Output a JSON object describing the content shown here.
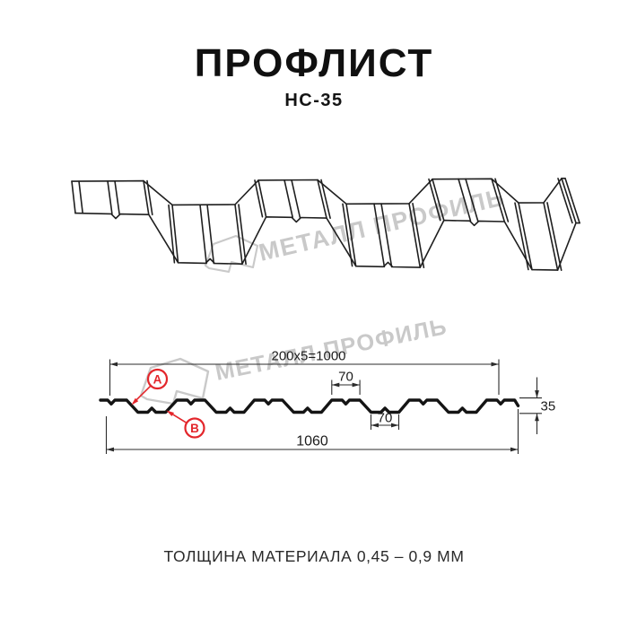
{
  "header": {
    "title": "ПРОФЛИСТ",
    "subtitle": "НС-35"
  },
  "footer": {
    "text": "ТОЛЩИНА МАТЕРИАЛА 0,45 – 0,9 ММ"
  },
  "watermark": {
    "text": "МЕТАЛЛ ПРОФИЛЬ",
    "color": "#c9c9c9"
  },
  "dimensions": {
    "useful_width": "200x5=1000",
    "total_width": "1060",
    "flange_width": "70",
    "valley_width": "70",
    "height": "35"
  },
  "callouts": {
    "a": "A",
    "b": "B",
    "color": "#e3262b"
  },
  "colors": {
    "line": "#1a1a1a",
    "dim_line": "#2b2b2b",
    "accent": "#e3262b",
    "watermark": "#c9c9c9"
  }
}
